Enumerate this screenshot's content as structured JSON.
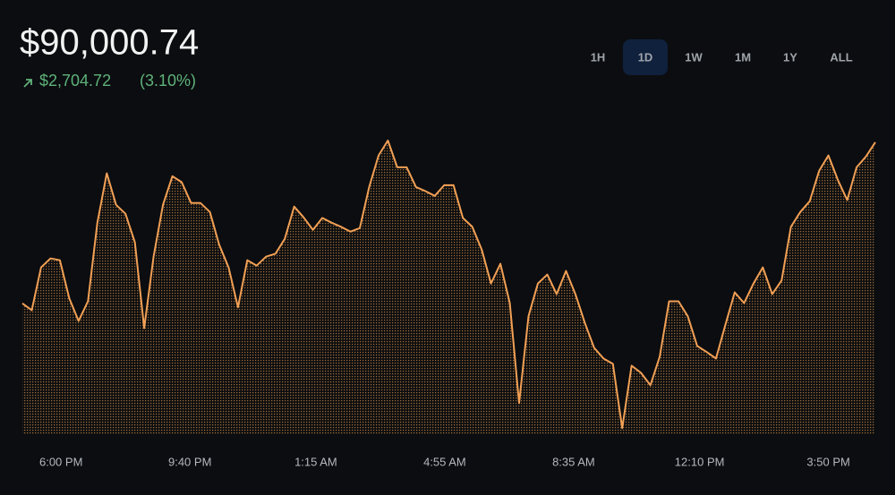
{
  "chart_data": {
    "type": "area",
    "title": "$90,000.74",
    "change": "$2,704.72",
    "change_pct": "(3.10%)",
    "ranges": [
      "1H",
      "1D",
      "1W",
      "1M",
      "1Y",
      "ALL"
    ],
    "selected_range": 1,
    "color": "#f2a055",
    "x": [
      0,
      16,
      32,
      48,
      64,
      80,
      96,
      112,
      128,
      144,
      160,
      176,
      192,
      208,
      224,
      240,
      256,
      272,
      288,
      304,
      320,
      336,
      352,
      368,
      384,
      400,
      416,
      432,
      448,
      464,
      480,
      496,
      512,
      528,
      544,
      560,
      576,
      592,
      608,
      624,
      640,
      656,
      672,
      688,
      704,
      720,
      736,
      752,
      768,
      784,
      800,
      816,
      832,
      848,
      864,
      880,
      896,
      912,
      928,
      944,
      960,
      976,
      992,
      1008,
      1024,
      1040,
      1056,
      1072,
      1088,
      1104,
      1120,
      1136,
      1152,
      1168,
      1184,
      1200,
      1216,
      1232,
      1248,
      1264,
      1280,
      1296,
      1312,
      1328,
      1344,
      1360,
      1376,
      1392,
      1408,
      1424,
      1440,
      1456
    ],
    "values": [
      87296.02,
      87180,
      87900,
      88050,
      88020,
      87380,
      87000,
      87330,
      88650,
      89480,
      88950,
      88800,
      88320,
      86880,
      88080,
      88950,
      89430,
      89330,
      88980,
      88980,
      88830,
      88280,
      87900,
      87230,
      88020,
      87930,
      88080,
      88130,
      88380,
      88920,
      88740,
      88530,
      88730,
      88650,
      88580,
      88500,
      88560,
      89250,
      89780,
      90030,
      89580,
      89580,
      89250,
      89180,
      89100,
      89280,
      89280,
      88730,
      88580,
      88200,
      87630,
      87960,
      87300,
      85620,
      87080,
      87630,
      87780,
      87450,
      87840,
      87450,
      86970,
      86550,
      86370,
      86280,
      85200,
      86250,
      86130,
      85920,
      86400,
      87330,
      87330,
      87080,
      86580,
      86480,
      86370,
      86930,
      87480,
      87300,
      87630,
      87900,
      87450,
      87680,
      88580,
      88830,
      89010,
      89520,
      89780,
      89370,
      89030,
      89580,
      89760,
      90000.74
    ],
    "xlim": [
      0,
      1456
    ],
    "xticks": [
      {
        "value": 66,
        "label": "6:00 PM"
      },
      {
        "value": 286,
        "label": "9:40 PM"
      },
      {
        "value": 501,
        "label": "1:15 AM"
      },
      {
        "value": 721,
        "label": "4:55 AM"
      },
      {
        "value": 941,
        "label": "8:35 AM"
      },
      {
        "value": 1156,
        "label": "12:10 PM"
      },
      {
        "value": 1376,
        "label": "3:50 PM"
      }
    ],
    "ylim": [
      85100,
      90300
    ]
  }
}
